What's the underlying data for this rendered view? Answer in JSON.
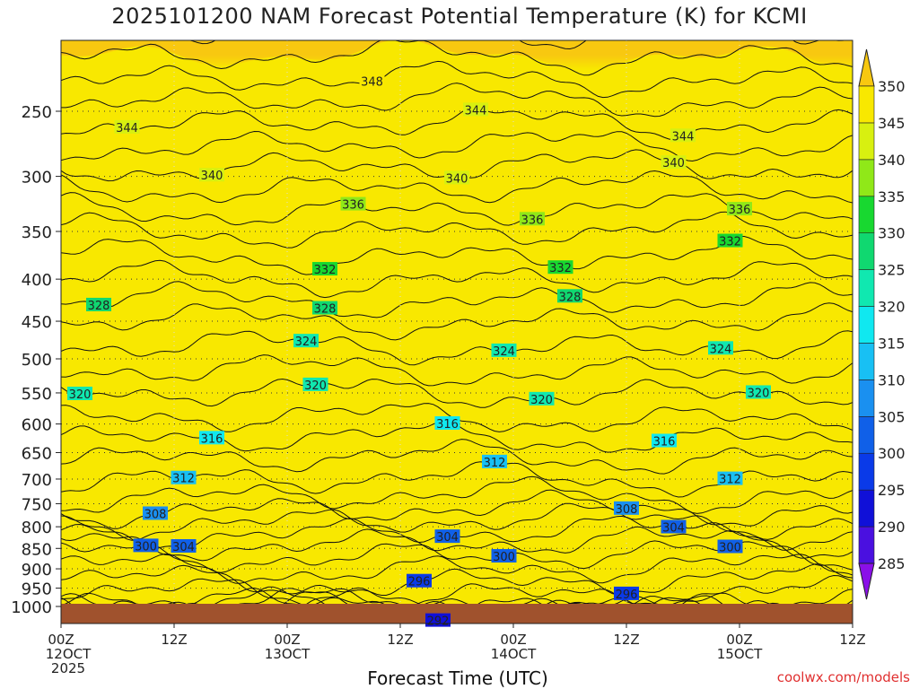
{
  "header": {
    "title": "2025101200 NAM Forecast Potential Temperature (K) for KCMI"
  },
  "footer": {
    "xlabel": "Forecast Time (UTC)",
    "credit": "coolwx.com/models"
  },
  "chart_data": {
    "type": "heatmap",
    "title": "2025101200 NAM Forecast Potential Temperature (K) for KCMI",
    "xlabel": "Forecast Time (UTC)",
    "ylabel": "",
    "xlim": [
      0,
      84
    ],
    "ylim": [
      1020,
      200
    ],
    "x_ticks": [
      {
        "hour": 0,
        "labels": [
          "00Z",
          "12OCT",
          "2025"
        ]
      },
      {
        "hour": 12,
        "labels": [
          "12Z"
        ]
      },
      {
        "hour": 24,
        "labels": [
          "00Z",
          "13OCT"
        ]
      },
      {
        "hour": 36,
        "labels": [
          "12Z"
        ]
      },
      {
        "hour": 48,
        "labels": [
          "00Z",
          "14OCT"
        ]
      },
      {
        "hour": 60,
        "labels": [
          "12Z"
        ]
      },
      {
        "hour": 72,
        "labels": [
          "00Z",
          "15OCT"
        ]
      },
      {
        "hour": 84,
        "labels": [
          "12Z"
        ]
      }
    ],
    "y_ticks": [
      250,
      300,
      350,
      400,
      450,
      500,
      550,
      600,
      650,
      700,
      750,
      800,
      850,
      900,
      950,
      1000
    ],
    "colorbar": {
      "levels": [
        285,
        290,
        295,
        300,
        305,
        310,
        315,
        320,
        325,
        330,
        335,
        340,
        345,
        350
      ],
      "colors": [
        "#8a10e8",
        "#4a10e0",
        "#1010d8",
        "#0a3ae8",
        "#1060e8",
        "#1a90f0",
        "#18c0f4",
        "#10e8f0",
        "#10e8b0",
        "#10d870",
        "#18d830",
        "#90e818",
        "#d8f010",
        "#f8e800",
        "#f8c810"
      ]
    },
    "isotherms": [
      {
        "theta": 292,
        "label_hour": 40
      },
      {
        "theta": 296,
        "label_hour": 38
      },
      {
        "theta": 296,
        "label_hour": 60
      },
      {
        "theta": 300,
        "label_hour": 9
      },
      {
        "theta": 300,
        "label_hour": 47
      },
      {
        "theta": 300,
        "label_hour": 71
      },
      {
        "theta": 304,
        "label_hour": 13
      },
      {
        "theta": 304,
        "label_hour": 41
      },
      {
        "theta": 304,
        "label_hour": 65
      },
      {
        "theta": 308,
        "label_hour": 10
      },
      {
        "theta": 308,
        "label_hour": 60
      },
      {
        "theta": 312,
        "label_hour": 13
      },
      {
        "theta": 312,
        "label_hour": 46
      },
      {
        "theta": 312,
        "label_hour": 71
      },
      {
        "theta": 316,
        "label_hour": 16
      },
      {
        "theta": 316,
        "label_hour": 41
      },
      {
        "theta": 316,
        "label_hour": 64
      },
      {
        "theta": 320,
        "label_hour": 2
      },
      {
        "theta": 320,
        "label_hour": 27
      },
      {
        "theta": 320,
        "label_hour": 51
      },
      {
        "theta": 320,
        "label_hour": 74
      },
      {
        "theta": 324,
        "label_hour": 26
      },
      {
        "theta": 324,
        "label_hour": 47
      },
      {
        "theta": 324,
        "label_hour": 70
      },
      {
        "theta": 328,
        "label_hour": 4
      },
      {
        "theta": 328,
        "label_hour": 28
      },
      {
        "theta": 328,
        "label_hour": 54
      },
      {
        "theta": 332,
        "label_hour": 28
      },
      {
        "theta": 332,
        "label_hour": 53
      },
      {
        "theta": 332,
        "label_hour": 71
      },
      {
        "theta": 336,
        "label_hour": 31
      },
      {
        "theta": 336,
        "label_hour": 50
      },
      {
        "theta": 336,
        "label_hour": 72
      },
      {
        "theta": 340,
        "label_hour": 16
      },
      {
        "theta": 340,
        "label_hour": 42
      },
      {
        "theta": 340,
        "label_hour": 65
      },
      {
        "theta": 344,
        "label_hour": 7
      },
      {
        "theta": 344,
        "label_hour": 44
      },
      {
        "theta": 344,
        "label_hour": 66
      },
      {
        "theta": 348,
        "label_hour": 33
      }
    ],
    "surface_pressure_hpa": 985
  }
}
